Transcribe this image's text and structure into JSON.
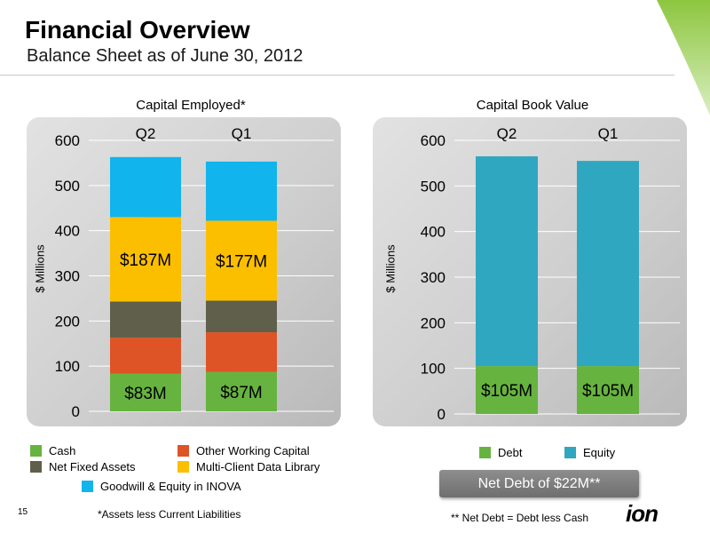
{
  "slide": {
    "title": "Financial Overview",
    "subtitle": "Balance Sheet as of June 30, 2012",
    "page_number": "15",
    "logo_text": "ion",
    "accent_color": "#7fc241"
  },
  "chart_data": [
    {
      "type": "bar",
      "stacked": true,
      "title": "Capital Employed*",
      "ylabel": "$ Millions",
      "ylim": [
        0,
        600
      ],
      "yticks": [
        0,
        100,
        200,
        300,
        400,
        500,
        600
      ],
      "categories": [
        "Q2",
        "Q1"
      ],
      "series": [
        {
          "name": "Cash",
          "color": "#67b340",
          "values": [
            83,
            87
          ],
          "labels": [
            "$83M",
            "$87M"
          ]
        },
        {
          "name": "Other Working Capital",
          "color": "#de5426",
          "values": [
            80,
            88
          ],
          "labels": [
            "",
            ""
          ]
        },
        {
          "name": "Net Fixed Assets",
          "color": "#5f5f4c",
          "values": [
            80,
            70
          ],
          "labels": [
            "",
            ""
          ]
        },
        {
          "name": "Multi-Client Data Library",
          "color": "#fcbf00",
          "values": [
            187,
            177
          ],
          "labels": [
            "$187M",
            "$177M"
          ]
        },
        {
          "name": "Goodwill & Equity in INOVA",
          "color": "#11b4ed",
          "values": [
            133,
            131
          ],
          "labels": [
            "",
            ""
          ]
        }
      ],
      "footnote": "*Assets less Current Liabilities"
    },
    {
      "type": "bar",
      "stacked": true,
      "title": "Capital Book Value",
      "ylabel": "$ Millions",
      "ylim": [
        0,
        600
      ],
      "yticks": [
        0,
        100,
        200,
        300,
        400,
        500,
        600
      ],
      "categories": [
        "Q2",
        "Q1"
      ],
      "series": [
        {
          "name": "Debt",
          "color": "#67b340",
          "values": [
            105,
            105
          ],
          "labels": [
            "$105M",
            "$105M"
          ]
        },
        {
          "name": "Equity",
          "color": "#2fa7c1",
          "values": [
            460,
            450
          ],
          "labels": [
            "",
            ""
          ]
        }
      ],
      "callout": "Net Debt of $22M**",
      "footnote": "** Net Debt = Debt less Cash"
    }
  ]
}
